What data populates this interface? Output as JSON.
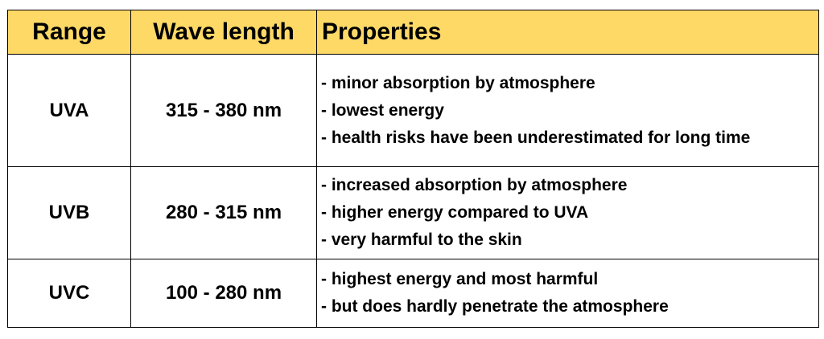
{
  "header": {
    "range": "Range",
    "wavelength": "Wave length",
    "properties": "Properties"
  },
  "rows": [
    {
      "range": "UVA",
      "wavelength": "315 - 380 nm",
      "properties": [
        "- minor absorption by atmosphere",
        "- lowest energy",
        "- health risks have been underestimated for long time"
      ]
    },
    {
      "range": "UVB",
      "wavelength": "280 - 315 nm",
      "properties": [
        "- increased absorption by atmosphere",
        "- higher energy compared to UVA",
        "- very harmful to the skin"
      ]
    },
    {
      "range": "UVC",
      "wavelength": "100 - 280 nm",
      "properties": [
        "- highest energy and most harmful",
        "- but does hardly penetrate the atmosphere"
      ]
    }
  ],
  "colors": {
    "header_background": "#ffd966",
    "border": "#000000",
    "text": "#000000"
  }
}
